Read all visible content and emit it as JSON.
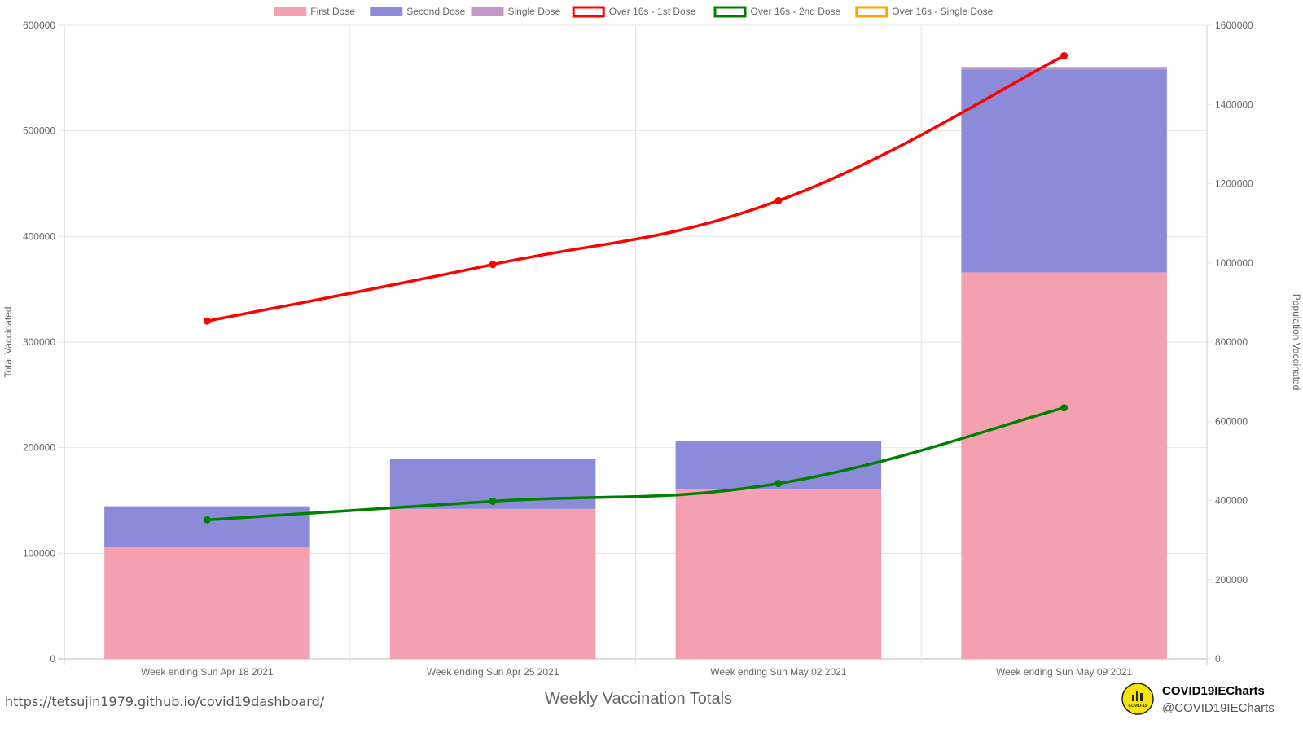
{
  "chart_data": {
    "type": "bar",
    "title": "Weekly Vaccination Totals",
    "categories": [
      "Week ending Sun Apr 18 2021",
      "Week ending Sun Apr 25 2021",
      "Week ending Sun May 02 2021",
      "Week ending Sun May 09 2021"
    ],
    "ylabel": "Total Vaccinated",
    "y2label": "Population Vaccinated",
    "ylim": [
      0,
      600000
    ],
    "y2lim": [
      0,
      1600000
    ],
    "yticks": [
      0,
      100000,
      200000,
      300000,
      400000,
      500000,
      600000
    ],
    "y2ticks": [
      0,
      200000,
      400000,
      600000,
      800000,
      1000000,
      1200000,
      1400000,
      1600000
    ],
    "stacked": true,
    "grid": true,
    "legend_position": "top",
    "bar_series": [
      {
        "name": "First Dose",
        "color": "#f4a0b0",
        "values": [
          105500,
          142000,
          160500,
          366000
        ]
      },
      {
        "name": "Second Dose",
        "color": "#8b8bda",
        "values": [
          39000,
          47500,
          46000,
          192000
        ]
      },
      {
        "name": "Single Dose",
        "color": "#c398c8",
        "values": [
          0,
          0,
          0,
          2500
        ]
      }
    ],
    "line_series": [
      {
        "name": "Over 16s - 1st Dose",
        "color": "#ff0000",
        "axis": "right",
        "values": [
          853000,
          996000,
          1157000,
          1523000
        ]
      },
      {
        "name": "Over 16s - 2nd Dose",
        "color": "#008000",
        "axis": "right",
        "values": [
          351000,
          398000,
          443000,
          634000
        ]
      },
      {
        "name": "Over 16s - Single Dose",
        "color": "#ffa500",
        "axis": "right",
        "values": []
      }
    ]
  },
  "footer": {
    "url": "https://tetsujin1979.github.io/covid19dashboard/",
    "brand_name": "COVID19IECharts",
    "brand_handle": "@COVID19IECharts",
    "logo_text": "COVID-19",
    "logo_color": "#f5e400"
  }
}
